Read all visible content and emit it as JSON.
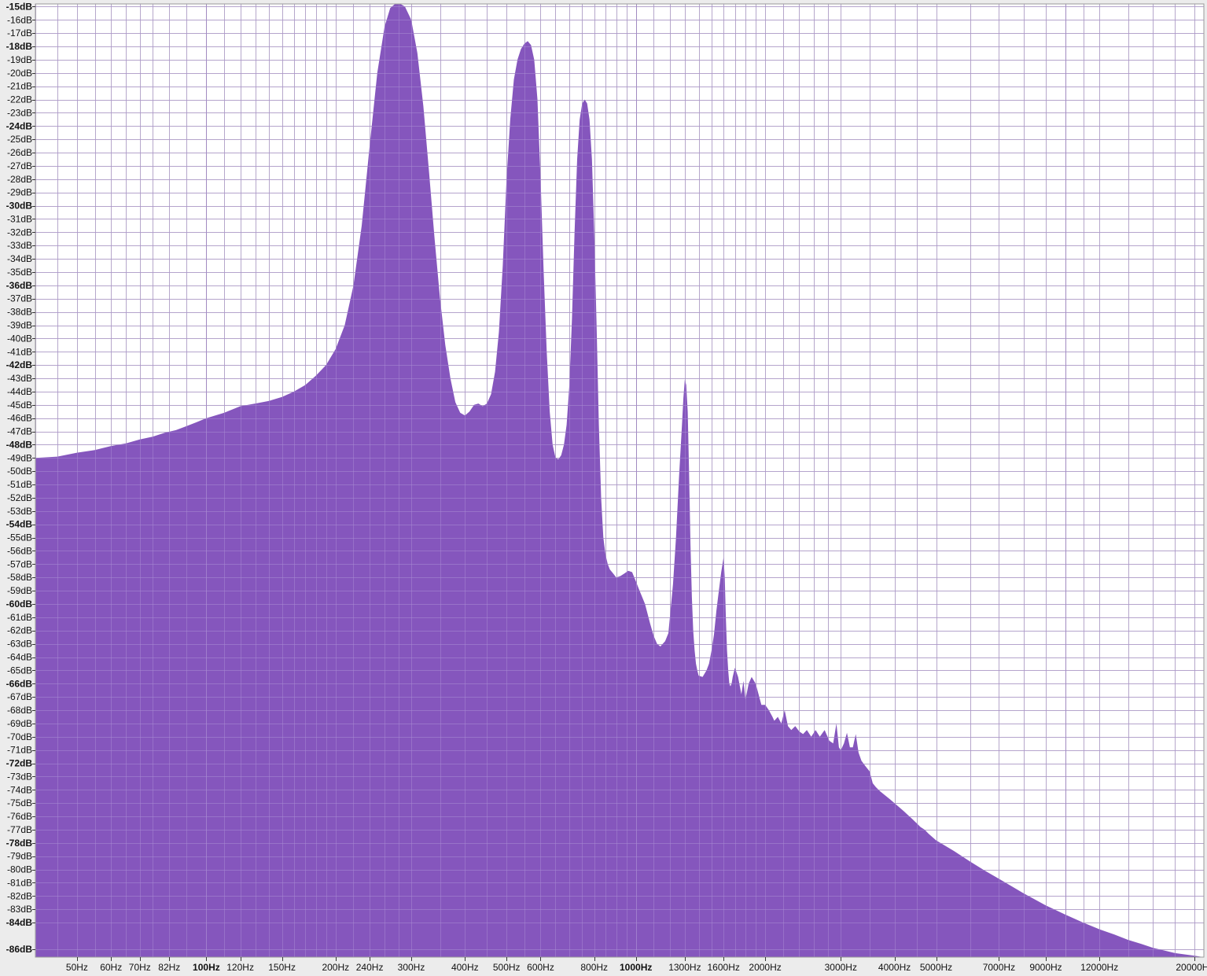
{
  "chart_data": {
    "type": "area",
    "title": "",
    "xlabel": "",
    "ylabel": "",
    "x_scale": "log",
    "xlim": [
      40,
      21000
    ],
    "ylim": [
      -86.6,
      -14.8
    ],
    "grid": true,
    "legend": "none",
    "colors": {
      "fill": "#8556bd",
      "plot_background": "#ffffff",
      "grid_minor": "#c4c4c4",
      "grid_major": "#8d8d8d",
      "frame": "#9a9a9a",
      "label_area": "#ececec"
    },
    "y_ticks": [
      {
        "v": -15,
        "label": "-15dB",
        "bold": true
      },
      {
        "v": -16,
        "label": "-16dB"
      },
      {
        "v": -17,
        "label": "-17dB"
      },
      {
        "v": -18,
        "label": "-18dB",
        "bold": true
      },
      {
        "v": -19,
        "label": "-19dB"
      },
      {
        "v": -20,
        "label": "-20dB"
      },
      {
        "v": -21,
        "label": "-21dB"
      },
      {
        "v": -22,
        "label": "-22dB"
      },
      {
        "v": -23,
        "label": "-23dB"
      },
      {
        "v": -24,
        "label": "-24dB",
        "bold": true
      },
      {
        "v": -25,
        "label": "-25dB"
      },
      {
        "v": -26,
        "label": "-26dB"
      },
      {
        "v": -27,
        "label": "-27dB"
      },
      {
        "v": -28,
        "label": "-28dB"
      },
      {
        "v": -29,
        "label": "-29dB"
      },
      {
        "v": -30,
        "label": "-30dB",
        "bold": true
      },
      {
        "v": -31,
        "label": "-31dB"
      },
      {
        "v": -32,
        "label": "-32dB"
      },
      {
        "v": -33,
        "label": "-33dB"
      },
      {
        "v": -34,
        "label": "-34dB"
      },
      {
        "v": -35,
        "label": "-35dB"
      },
      {
        "v": -36,
        "label": "-36dB",
        "bold": true
      },
      {
        "v": -37,
        "label": "-37dB"
      },
      {
        "v": -38,
        "label": "-38dB"
      },
      {
        "v": -39,
        "label": "-39dB"
      },
      {
        "v": -40,
        "label": "-40dB"
      },
      {
        "v": -41,
        "label": "-41dB"
      },
      {
        "v": -42,
        "label": "-42dB",
        "bold": true
      },
      {
        "v": -43,
        "label": "-43dB"
      },
      {
        "v": -44,
        "label": "-44dB"
      },
      {
        "v": -45,
        "label": "-45dB"
      },
      {
        "v": -46,
        "label": "-46dB"
      },
      {
        "v": -47,
        "label": "-47dB"
      },
      {
        "v": -48,
        "label": "-48dB",
        "bold": true
      },
      {
        "v": -49,
        "label": "-49dB"
      },
      {
        "v": -50,
        "label": "-50dB"
      },
      {
        "v": -51,
        "label": "-51dB"
      },
      {
        "v": -52,
        "label": "-52dB"
      },
      {
        "v": -53,
        "label": "-53dB"
      },
      {
        "v": -54,
        "label": "-54dB",
        "bold": true
      },
      {
        "v": -55,
        "label": "-55dB"
      },
      {
        "v": -56,
        "label": "-56dB"
      },
      {
        "v": -57,
        "label": "-57dB"
      },
      {
        "v": -58,
        "label": "-58dB"
      },
      {
        "v": -59,
        "label": "-59dB"
      },
      {
        "v": -60,
        "label": "-60dB",
        "bold": true
      },
      {
        "v": -61,
        "label": "-61dB"
      },
      {
        "v": -62,
        "label": "-62dB"
      },
      {
        "v": -63,
        "label": "-63dB"
      },
      {
        "v": -64,
        "label": "-64dB"
      },
      {
        "v": -65,
        "label": "-65dB"
      },
      {
        "v": -66,
        "label": "-66dB",
        "bold": true
      },
      {
        "v": -67,
        "label": "-67dB"
      },
      {
        "v": -68,
        "label": "-68dB"
      },
      {
        "v": -69,
        "label": "-69dB"
      },
      {
        "v": -70,
        "label": "-70dB"
      },
      {
        "v": -71,
        "label": "-71dB"
      },
      {
        "v": -72,
        "label": "-72dB",
        "bold": true
      },
      {
        "v": -73,
        "label": "-73dB"
      },
      {
        "v": -74,
        "label": "-74dB"
      },
      {
        "v": -75,
        "label": "-75dB"
      },
      {
        "v": -76,
        "label": "-76dB"
      },
      {
        "v": -77,
        "label": "-77dB"
      },
      {
        "v": -78,
        "label": "-78dB",
        "bold": true
      },
      {
        "v": -79,
        "label": "-79dB"
      },
      {
        "v": -80,
        "label": "-80dB"
      },
      {
        "v": -81,
        "label": "-81dB"
      },
      {
        "v": -82,
        "label": "-82dB"
      },
      {
        "v": -83,
        "label": "-83dB"
      },
      {
        "v": -84,
        "label": "-84dB",
        "bold": true
      },
      {
        "v": -86,
        "label": "-86dB",
        "bold": true
      }
    ],
    "x_ticks": [
      {
        "v": 50,
        "label": "50Hz"
      },
      {
        "v": 60,
        "label": "60Hz"
      },
      {
        "v": 70,
        "label": "70Hz"
      },
      {
        "v": 82,
        "label": "82Hz"
      },
      {
        "v": 100,
        "label": "100Hz",
        "bold": true
      },
      {
        "v": 120,
        "label": "120Hz"
      },
      {
        "v": 150,
        "label": "150Hz"
      },
      {
        "v": 200,
        "label": "200Hz"
      },
      {
        "v": 240,
        "label": "240Hz"
      },
      {
        "v": 300,
        "label": "300Hz"
      },
      {
        "v": 400,
        "label": "400Hz"
      },
      {
        "v": 500,
        "label": "500Hz"
      },
      {
        "v": 600,
        "label": "600Hz"
      },
      {
        "v": 800,
        "label": "800Hz"
      },
      {
        "v": 1000,
        "label": "1000Hz",
        "bold": true
      },
      {
        "v": 1300,
        "label": "1300Hz"
      },
      {
        "v": 1600,
        "label": "1600Hz"
      },
      {
        "v": 2000,
        "label": "2000Hz"
      },
      {
        "v": 3000,
        "label": "3000Hz"
      },
      {
        "v": 4000,
        "label": "4000Hz"
      },
      {
        "v": 5000,
        "label": "5000Hz"
      },
      {
        "v": 7000,
        "label": "7000Hz"
      },
      {
        "v": 9000,
        "label": "9000Hz"
      },
      {
        "v": 12000,
        "label": "12000Hz"
      },
      {
        "v": 20000,
        "label": "20000Hz"
      }
    ],
    "x_minor_grid": [
      40,
      45,
      55,
      65,
      75,
      90,
      110,
      130,
      140,
      160,
      170,
      180,
      190,
      220,
      260,
      280,
      350,
      450,
      550,
      650,
      700,
      750,
      850,
      900,
      950,
      1100,
      1200,
      1400,
      1500,
      1700,
      1800,
      1900,
      2200,
      2400,
      2600,
      2800,
      3500,
      4500,
      6000,
      8000,
      10000,
      11000,
      14000,
      16000,
      18000
    ],
    "x_major_grid": [
      100,
      1000,
      10000
    ],
    "series": [
      {
        "x": [
          40,
          45,
          50,
          55,
          60,
          65,
          70,
          75,
          80,
          85,
          90,
          95,
          100,
          110,
          120,
          130,
          140,
          150,
          160,
          170,
          180,
          190,
          200,
          210,
          220,
          230,
          240,
          250,
          260,
          268,
          275,
          283,
          290,
          300,
          310,
          320,
          330,
          340,
          350,
          360,
          370,
          380,
          390,
          400,
          410,
          420,
          430,
          440,
          450,
          460,
          470,
          480,
          490,
          500,
          510,
          520,
          530,
          540,
          550,
          560,
          570,
          580,
          590,
          600,
          610,
          620,
          630,
          640,
          650,
          660,
          670,
          680,
          690,
          700,
          710,
          720,
          730,
          740,
          750,
          760,
          770,
          780,
          790,
          800,
          810,
          820,
          830,
          840,
          850,
          860,
          870,
          880,
          890,
          900,
          920,
          940,
          960,
          980,
          1000,
          1020,
          1050,
          1080,
          1100,
          1120,
          1140,
          1170,
          1190,
          1200,
          1220,
          1240,
          1260,
          1280,
          1290,
          1300,
          1310,
          1320,
          1330,
          1340,
          1350,
          1360,
          1370,
          1380,
          1390,
          1400,
          1430,
          1460,
          1480,
          1500,
          1520,
          1540,
          1560,
          1580,
          1600,
          1610,
          1620,
          1630,
          1640,
          1650,
          1660,
          1670,
          1680,
          1700,
          1730,
          1760,
          1780,
          1800,
          1830,
          1860,
          1900,
          1930,
          1960,
          2000,
          2040,
          2080,
          2100,
          2140,
          2180,
          2220,
          2260,
          2300,
          2350,
          2400,
          2450,
          2500,
          2560,
          2620,
          2680,
          2750,
          2820,
          2880,
          2930,
          2970,
          3000,
          3050,
          3100,
          3150,
          3200,
          3250,
          3300,
          3350,
          3420,
          3500,
          3560,
          3620,
          3700,
          3800,
          3900,
          4000,
          4100,
          4200,
          4300,
          4400,
          4500,
          4600,
          4700,
          4800,
          5000,
          5500,
          6000,
          6500,
          7000,
          8000,
          9000,
          10000,
          11000,
          12000,
          13000,
          14000,
          15000,
          16000,
          17000,
          18000,
          19000,
          20000,
          21000
        ],
        "y": [
          -49.0,
          -48.9,
          -48.6,
          -48.4,
          -48.1,
          -47.9,
          -47.6,
          -47.4,
          -47.1,
          -46.9,
          -46.6,
          -46.3,
          -46.0,
          -45.6,
          -45.1,
          -44.9,
          -44.7,
          -44.4,
          -44.0,
          -43.5,
          -42.8,
          -42.0,
          -40.8,
          -39.0,
          -36.0,
          -31.5,
          -25.5,
          -20.0,
          -16.5,
          -15.1,
          -14.8,
          -14.8,
          -15.0,
          -16.0,
          -18.5,
          -22.5,
          -27.5,
          -32.5,
          -37.0,
          -40.5,
          -43.0,
          -44.8,
          -45.6,
          -45.8,
          -45.5,
          -45.0,
          -44.9,
          -45.1,
          -44.9,
          -44.2,
          -42.5,
          -39.5,
          -34.5,
          -28.0,
          -23.5,
          -20.5,
          -19.0,
          -18.2,
          -17.8,
          -17.6,
          -17.9,
          -19.0,
          -22.0,
          -28.0,
          -35.0,
          -41.0,
          -45.5,
          -48.0,
          -49.0,
          -49.1,
          -48.8,
          -48.0,
          -46.5,
          -43.5,
          -38.5,
          -32.0,
          -26.5,
          -23.5,
          -22.3,
          -22.0,
          -22.3,
          -23.5,
          -26.5,
          -32.0,
          -39.0,
          -46.5,
          -52.0,
          -55.0,
          -56.3,
          -57.0,
          -57.4,
          -57.6,
          -57.8,
          -58.0,
          -57.9,
          -57.7,
          -57.5,
          -57.6,
          -58.3,
          -59.0,
          -60.0,
          -61.5,
          -62.4,
          -63.0,
          -63.2,
          -62.8,
          -62.2,
          -61.0,
          -58.5,
          -55.0,
          -50.5,
          -46.5,
          -44.5,
          -43.1,
          -43.5,
          -45.5,
          -50.0,
          -55.5,
          -59.5,
          -62.0,
          -63.5,
          -64.5,
          -65.0,
          -65.4,
          -65.5,
          -65.0,
          -64.5,
          -63.5,
          -62.3,
          -60.5,
          -59.0,
          -57.6,
          -56.5,
          -58.0,
          -61.0,
          -63.5,
          -65.0,
          -66.0,
          -66.2,
          -66.0,
          -65.5,
          -64.8,
          -65.5,
          -66.8,
          -65.8,
          -67.2,
          -66.0,
          -65.5,
          -66.0,
          -66.8,
          -67.6,
          -67.6,
          -68.0,
          -68.5,
          -68.8,
          -68.5,
          -69.0,
          -68.0,
          -69.2,
          -69.5,
          -69.2,
          -69.6,
          -69.8,
          -69.5,
          -70.0,
          -69.5,
          -70.0,
          -69.5,
          -70.3,
          -70.5,
          -69.0,
          -70.8,
          -71.0,
          -70.5,
          -69.7,
          -70.8,
          -70.8,
          -69.8,
          -71.2,
          -71.8,
          -72.2,
          -72.6,
          -73.5,
          -73.8,
          -74.1,
          -74.4,
          -74.7,
          -75.0,
          -75.3,
          -75.6,
          -75.9,
          -76.2,
          -76.5,
          -76.8,
          -77.0,
          -77.3,
          -77.8,
          -78.6,
          -79.4,
          -80.1,
          -80.7,
          -81.8,
          -82.7,
          -83.4,
          -84.0,
          -84.5,
          -84.9,
          -85.3,
          -85.6,
          -85.9,
          -86.1,
          -86.3,
          -86.4,
          -86.5,
          -86.6
        ]
      }
    ]
  }
}
